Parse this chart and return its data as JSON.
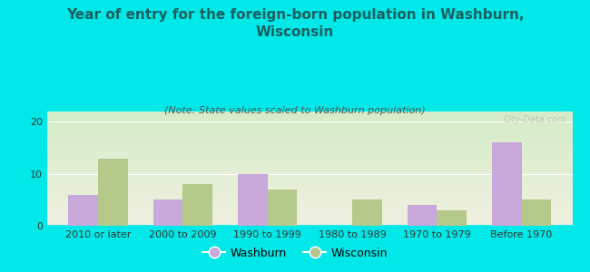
{
  "title_line1": "Year of entry for the foreign-born population in Washburn,",
  "title_line2": "Wisconsin",
  "subtitle": "(Note: State values scaled to Washburn population)",
  "categories": [
    "2010 or later",
    "2000 to 2009",
    "1990 to 1999",
    "1980 to 1989",
    "1970 to 1979",
    "Before 1970"
  ],
  "washburn_values": [
    6,
    5,
    10,
    0,
    4,
    16
  ],
  "wisconsin_values": [
    13,
    8,
    7,
    5,
    3,
    5
  ],
  "washburn_color": "#c9a8dc",
  "wisconsin_color": "#b5c98a",
  "background_color": "#00e8e8",
  "grad_top": "#d4edc8",
  "grad_bottom": "#f0f0e0",
  "ylim": [
    0,
    22
  ],
  "yticks": [
    0,
    10,
    20
  ],
  "bar_width": 0.35,
  "title_fontsize": 11,
  "subtitle_fontsize": 8,
  "tick_fontsize": 8,
  "title_color": "#1a6060",
  "subtitle_color": "#555555",
  "legend_labels": [
    "Washburn",
    "Wisconsin"
  ],
  "watermark": "City-Data.com"
}
